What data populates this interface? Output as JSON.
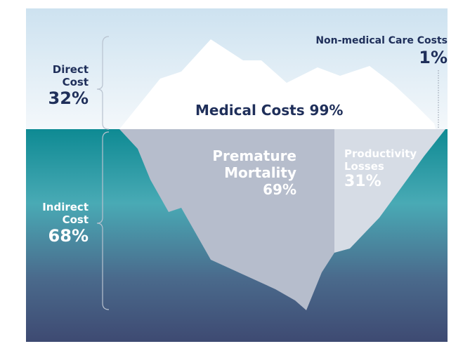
{
  "direct": {
    "label_line1": "Direct",
    "label_line2": "Cost",
    "percent": "32%"
  },
  "indirect": {
    "label_line1": "Indirect",
    "label_line2": "Cost",
    "percent": "68%"
  },
  "nonmedical": {
    "label": "Non-medical Care Costs",
    "percent": "1%"
  },
  "medical": {
    "label": "Medical Costs 99%"
  },
  "premature": {
    "label_line1": "Premature",
    "label_line2": "Mortality",
    "percent": "69%"
  },
  "productivity": {
    "label_line1": "Productivity",
    "label_line2": "Losses",
    "percent": "31%"
  },
  "colors": {
    "sky_top": "#cfe3f1",
    "sky_bottom": "#ffffff",
    "water_top": "#0f8c95",
    "water_mid": "#4aa9b4",
    "water_bottom": "#3f4e77",
    "ice_above": "#ffffff",
    "ice_premature": "#b5bccc",
    "ice_productivity": "#d7dde6",
    "text_dark": "#1f2f5a",
    "bracket": "#b8c2cf"
  }
}
